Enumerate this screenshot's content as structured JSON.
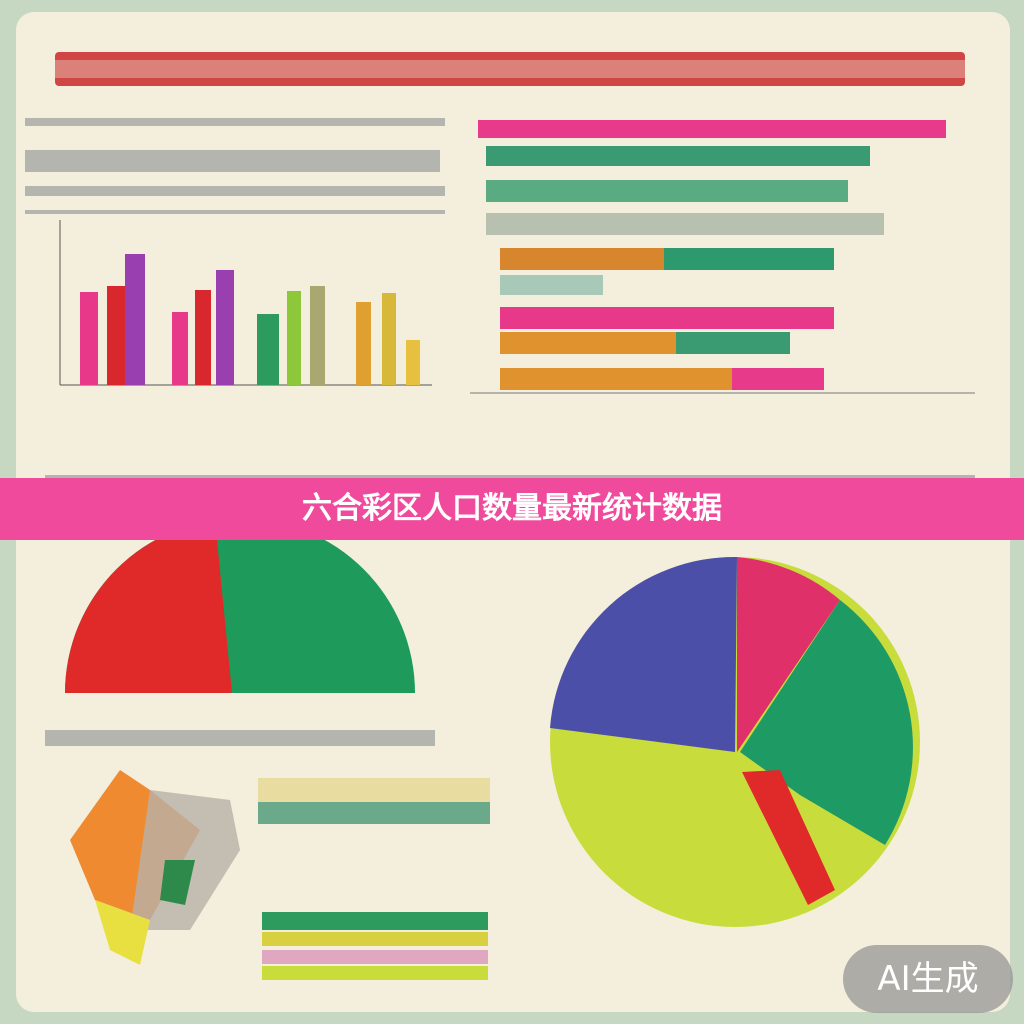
{
  "banner": {
    "title": "六合彩区人口数量最新统计数据"
  },
  "badge": {
    "label": "AI生成"
  }
}
